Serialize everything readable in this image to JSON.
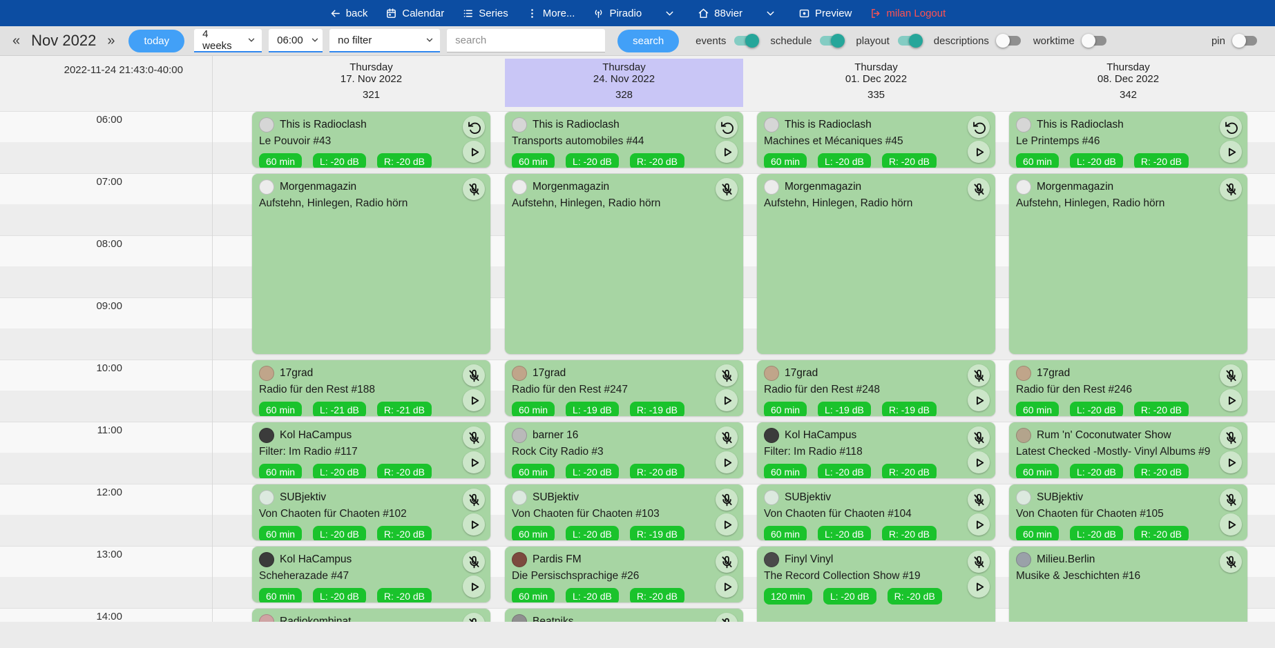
{
  "colors": {
    "navbg": "#0c4da2",
    "toolbarbg": "#e1e1e1",
    "accent": "#42a0f7",
    "teal": "#26a69a",
    "cardgreen": "#a7d5a3",
    "badgegreen": "#1ac32c",
    "highlight": "#c9c6f6",
    "logout_red": "#ff5252"
  },
  "nav": {
    "items": [
      {
        "name": "nav-back",
        "icon": "arrow-left-icon",
        "label": "back"
      },
      {
        "name": "nav-calendar",
        "icon": "calendar-icon",
        "label": "Calendar"
      },
      {
        "name": "nav-series",
        "icon": "list-icon",
        "label": "Series"
      },
      {
        "name": "nav-more",
        "icon": "dots-vertical-icon",
        "label": "More..."
      },
      {
        "name": "nav-piradio",
        "icon": "broadcast-icon",
        "label": "Piradio"
      },
      {
        "name": "nav-piradio-dropdown",
        "icon": "chevron-down-icon",
        "label": "",
        "caret": true
      },
      {
        "name": "nav-88vier",
        "icon": "home-icon",
        "label": "88vier"
      },
      {
        "name": "nav-88vier-dropdown",
        "icon": "chevron-down-icon",
        "label": "",
        "caret": true
      },
      {
        "name": "nav-preview",
        "icon": "preview-icon",
        "label": "Preview"
      },
      {
        "name": "nav-logout",
        "icon": "logout-icon",
        "label": "milan Logout",
        "red": true
      }
    ]
  },
  "toolbar": {
    "prev_label": "«",
    "month_label": "Nov 2022",
    "next_label": "»",
    "today_label": "today",
    "range_value": "4 weeks",
    "start_time_value": "06:00",
    "filter_value": "no filter",
    "search_placeholder": "search",
    "search_label": "search",
    "toggles": [
      {
        "label": "events",
        "on": true
      },
      {
        "label": "schedule",
        "on": true
      },
      {
        "label": "playout",
        "on": true
      },
      {
        "label": "descriptions",
        "on": false
      },
      {
        "label": "worktime",
        "on": false
      },
      {
        "label": "pin",
        "on": false,
        "align_right": true
      }
    ]
  },
  "timebar": {
    "current": "2022-11-24 21:43:0-40:00",
    "hours": [
      "06:00",
      "07:00",
      "08:00",
      "09:00",
      "10:00",
      "11:00",
      "12:00",
      "13:00",
      "14:00"
    ]
  },
  "columns": [
    {
      "weekday": "Thursday",
      "date": "17. Nov 2022",
      "day_number": "321",
      "highlighted": false,
      "events": [
        {
          "series": "This is Radioclash",
          "episode": "Le Pouvoir #43",
          "start_hour": 6,
          "duration_hours": 1,
          "badges": [
            "60 min",
            "L: -20 dB",
            "R: -20 dB"
          ],
          "buttons": [
            "replay-icon",
            "play-icon"
          ],
          "avatar_color": "#d6d6d6"
        },
        {
          "series": "Morgenmagazin",
          "episode": "Aufstehn, Hinlegen, Radio hörn",
          "start_hour": 7,
          "duration_hours": 3,
          "badges": [],
          "buttons": [
            "mic-off-icon"
          ],
          "avatar_color": "#ececec"
        },
        {
          "series": "17grad",
          "episode": "Radio für den Rest #188",
          "start_hour": 10,
          "duration_hours": 1,
          "badges": [
            "60 min",
            "L: -21 dB",
            "R: -21 dB"
          ],
          "buttons": [
            "mic-off-icon",
            "play-icon"
          ],
          "avatar_color": "#c0a58a"
        },
        {
          "series": "Kol HaCampus",
          "episode": "Filter: Im Radio #117",
          "start_hour": 11,
          "duration_hours": 1,
          "badges": [
            "60 min",
            "L: -20 dB",
            "R: -20 dB"
          ],
          "buttons": [
            "mic-off-icon",
            "play-icon"
          ],
          "avatar_color": "#3b3b3b"
        },
        {
          "series": "SUBjektiv",
          "episode": "Von Chaoten für Chaoten #102",
          "start_hour": 12,
          "duration_hours": 1,
          "badges": [
            "60 min",
            "L: -20 dB",
            "R: -20 dB"
          ],
          "buttons": [
            "mic-off-icon",
            "play-icon"
          ],
          "avatar_color": "#dce9df"
        },
        {
          "series": "Kol HaCampus",
          "episode": "Scheherazade #47",
          "start_hour": 13,
          "duration_hours": 1,
          "badges": [
            "60 min",
            "L: -20 dB",
            "R: -20 dB"
          ],
          "buttons": [
            "mic-off-icon",
            "play-icon"
          ],
          "avatar_color": "#3b3b3b"
        },
        {
          "series": "Radiokombinat",
          "episode": "",
          "start_hour": 14,
          "duration_hours": 1,
          "badges": [],
          "buttons": [
            "mic-off-icon"
          ],
          "avatar_color": "#cfa3a3"
        }
      ]
    },
    {
      "weekday": "Thursday",
      "date": "24. Nov 2022",
      "day_number": "328",
      "highlighted": true,
      "events": [
        {
          "series": "This is Radioclash",
          "episode": "Transports automobiles #44",
          "start_hour": 6,
          "duration_hours": 1,
          "badges": [
            "60 min",
            "L: -20 dB",
            "R: -20 dB"
          ],
          "buttons": [
            "replay-icon",
            "play-icon"
          ],
          "avatar_color": "#d6d6d6"
        },
        {
          "series": "Morgenmagazin",
          "episode": "Aufstehn, Hinlegen, Radio hörn",
          "start_hour": 7,
          "duration_hours": 3,
          "badges": [],
          "buttons": [
            "mic-off-icon"
          ],
          "avatar_color": "#ececec"
        },
        {
          "series": "17grad",
          "episode": "Radio für den Rest #247",
          "start_hour": 10,
          "duration_hours": 1,
          "badges": [
            "60 min",
            "L: -19 dB",
            "R: -19 dB"
          ],
          "buttons": [
            "mic-off-icon",
            "play-icon"
          ],
          "avatar_color": "#c0a58a"
        },
        {
          "series": "barner 16",
          "episode": "Rock City Radio #3",
          "start_hour": 11,
          "duration_hours": 1,
          "badges": [
            "60 min",
            "L: -20 dB",
            "R: -20 dB"
          ],
          "buttons": [
            "mic-off-icon",
            "play-icon"
          ],
          "avatar_color": "#b9b9b9"
        },
        {
          "series": "SUBjektiv",
          "episode": "Von Chaoten für Chaoten #103",
          "start_hour": 12,
          "duration_hours": 1,
          "badges": [
            "60 min",
            "L: -20 dB",
            "R: -19 dB"
          ],
          "buttons": [
            "mic-off-icon",
            "play-icon"
          ],
          "avatar_color": "#dce9df"
        },
        {
          "series": "Pardis FM",
          "episode": "Die Persischsprachige #26",
          "start_hour": 13,
          "duration_hours": 1,
          "badges": [
            "60 min",
            "L: -20 dB",
            "R: -20 dB"
          ],
          "buttons": [
            "mic-off-icon",
            "play-icon"
          ],
          "avatar_color": "#7c4a3e"
        },
        {
          "series": "Beatniks",
          "episode": "",
          "start_hour": 14,
          "duration_hours": 1,
          "badges": [],
          "buttons": [
            "mic-off-icon"
          ],
          "avatar_color": "#8f8f8f"
        }
      ]
    },
    {
      "weekday": "Thursday",
      "date": "01. Dec 2022",
      "day_number": "335",
      "highlighted": false,
      "events": [
        {
          "series": "This is Radioclash",
          "episode": "Machines et Mécaniques #45",
          "start_hour": 6,
          "duration_hours": 1,
          "badges": [
            "60 min",
            "L: -20 dB",
            "R: -20 dB"
          ],
          "buttons": [
            "replay-icon",
            "play-icon"
          ],
          "avatar_color": "#d6d6d6"
        },
        {
          "series": "Morgenmagazin",
          "episode": "Aufstehn, Hinlegen, Radio hörn",
          "start_hour": 7,
          "duration_hours": 3,
          "badges": [],
          "buttons": [
            "mic-off-icon"
          ],
          "avatar_color": "#ececec"
        },
        {
          "series": "17grad",
          "episode": "Radio für den Rest #248",
          "start_hour": 10,
          "duration_hours": 1,
          "badges": [
            "60 min",
            "L: -19 dB",
            "R: -19 dB"
          ],
          "buttons": [
            "mic-off-icon",
            "play-icon"
          ],
          "avatar_color": "#c0a58a"
        },
        {
          "series": "Kol HaCampus",
          "episode": "Filter: Im Radio #118",
          "start_hour": 11,
          "duration_hours": 1,
          "badges": [
            "60 min",
            "L: -20 dB",
            "R: -20 dB"
          ],
          "buttons": [
            "mic-off-icon",
            "play-icon"
          ],
          "avatar_color": "#3b3b3b"
        },
        {
          "series": "SUBjektiv",
          "episode": "Von Chaoten für Chaoten #104",
          "start_hour": 12,
          "duration_hours": 1,
          "badges": [
            "60 min",
            "L: -20 dB",
            "R: -20 dB"
          ],
          "buttons": [
            "mic-off-icon",
            "play-icon"
          ],
          "avatar_color": "#dce9df"
        },
        {
          "series": "Finyl Vinyl",
          "episode": "The Record Collection Show #19",
          "start_hour": 13,
          "duration_hours": 2,
          "badges": [
            "120 min",
            "L: -20 dB",
            "R: -20 dB"
          ],
          "buttons": [
            "mic-off-icon",
            "play-icon"
          ],
          "avatar_color": "#4a4a4a"
        }
      ]
    },
    {
      "weekday": "Thursday",
      "date": "08. Dec 2022",
      "day_number": "342",
      "highlighted": false,
      "events": [
        {
          "series": "This is Radioclash",
          "episode": "Le Printemps #46",
          "start_hour": 6,
          "duration_hours": 1,
          "badges": [
            "60 min",
            "L: -20 dB",
            "R: -20 dB"
          ],
          "buttons": [
            "replay-icon",
            "play-icon"
          ],
          "avatar_color": "#d6d6d6"
        },
        {
          "series": "Morgenmagazin",
          "episode": "Aufstehn, Hinlegen, Radio hörn",
          "start_hour": 7,
          "duration_hours": 3,
          "badges": [],
          "buttons": [
            "mic-off-icon"
          ],
          "avatar_color": "#ececec"
        },
        {
          "series": "17grad",
          "episode": "Radio für den Rest #246",
          "start_hour": 10,
          "duration_hours": 1,
          "badges": [
            "60 min",
            "L: -20 dB",
            "R: -20 dB"
          ],
          "buttons": [
            "mic-off-icon",
            "play-icon"
          ],
          "avatar_color": "#c0a58a"
        },
        {
          "series": "Rum 'n' Coconutwater Show",
          "episode": "Latest Checked -Mostly- Vinyl Albums #9",
          "start_hour": 11,
          "duration_hours": 1,
          "badges": [
            "60 min",
            "L: -20 dB",
            "R: -20 dB"
          ],
          "buttons": [
            "mic-off-icon",
            "play-icon"
          ],
          "avatar_color": "#b3a48c"
        },
        {
          "series": "SUBjektiv",
          "episode": "Von Chaoten für Chaoten #105",
          "start_hour": 12,
          "duration_hours": 1,
          "badges": [
            "60 min",
            "L: -20 dB",
            "R: -20 dB"
          ],
          "buttons": [
            "mic-off-icon",
            "play-icon"
          ],
          "avatar_color": "#dce9df"
        },
        {
          "series": "Milieu.Berlin",
          "episode": "Musike & Jeschichten #16",
          "start_hour": 13,
          "duration_hours": 2,
          "badges": [],
          "buttons": [
            "mic-off-icon"
          ],
          "avatar_color": "#9aa1a9"
        }
      ]
    }
  ]
}
